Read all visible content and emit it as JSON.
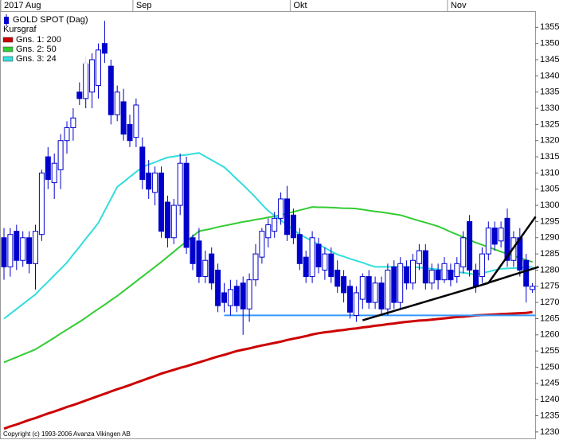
{
  "chart_data": {
    "type": "candlestick",
    "title": "GOLD SPOT (Dag)",
    "candle_label": "Kursgraf",
    "categories": [
      "2017 Aug",
      null,
      null,
      null,
      null,
      null,
      null,
      null,
      null,
      null,
      null,
      null,
      null,
      null,
      null,
      null,
      null,
      null,
      null,
      null,
      null,
      "Sep",
      null,
      null,
      null,
      null,
      null,
      null,
      null,
      null,
      null,
      null,
      null,
      null,
      null,
      null,
      null,
      null,
      null,
      null,
      null,
      null,
      null,
      null,
      null,
      null,
      "Okt",
      null,
      null,
      null,
      null,
      null,
      null,
      null,
      null,
      null,
      null,
      null,
      null,
      null,
      null,
      null,
      null,
      null,
      null,
      null,
      null,
      null,
      null,
      null,
      null,
      "Nov",
      null,
      null,
      null,
      null,
      null,
      null,
      null,
      null,
      null,
      null,
      null,
      null,
      null
    ],
    "open": [
      1290,
      1281,
      1292,
      1283,
      1290,
      1282,
      1291,
      1315,
      1307,
      1311,
      1320,
      1324,
      1335,
      1333,
      1335,
      1337,
      1350,
      1343,
      1328,
      1332,
      1325,
      1321,
      1318,
      1310,
      1304,
      1310,
      1301,
      1290,
      1300,
      1313,
      1290,
      1289,
      1278,
      1285,
      1280,
      1273,
      1269,
      1275,
      1276,
      1268,
      1277,
      1284,
      1290,
      1292,
      1296,
      1302,
      1297,
      1291,
      1284,
      1278,
      1288,
      1280,
      1285,
      1280,
      1278,
      1275,
      1266,
      1271,
      1278,
      1270,
      1276,
      1268,
      1281,
      1270,
      1281,
      1276,
      1282,
      1286,
      1276,
      1280,
      1277,
      1280,
      1278,
      1281,
      1295,
      1280,
      1278,
      1285,
      1293,
      1289,
      1296,
      1283,
      1290,
      1283,
      1274
    ],
    "high": [
      1293,
      1293,
      1294,
      1292,
      1292,
      1294,
      1311,
      1318,
      1316,
      1322,
      1326,
      1330,
      1338,
      1346,
      1347,
      1350,
      1357,
      1345,
      1337,
      1336,
      1328,
      1333,
      1321,
      1314,
      1312,
      1312,
      1303,
      1302,
      1316,
      1315,
      1291,
      1293,
      1286,
      1287,
      1282,
      1276,
      1277,
      1277,
      1278,
      1279,
      1288,
      1293,
      1296,
      1298,
      1304,
      1306,
      1299,
      1293,
      1286,
      1292,
      1290,
      1287,
      1287,
      1283,
      1280,
      1277,
      1275,
      1279,
      1280,
      1278,
      1278,
      1282,
      1283,
      1284,
      1283,
      1285,
      1288,
      1288,
      1282,
      1282,
      1284,
      1282,
      1284,
      1292,
      1297,
      1282,
      1287,
      1295,
      1295,
      1295,
      1299,
      1292,
      1293,
      1285,
      1276
    ],
    "low": [
      1277,
      1278,
      1280,
      1281,
      1279,
      1274,
      1289,
      1305,
      1302,
      1305,
      1316,
      1320,
      1331,
      1330,
      1330,
      1333,
      1344,
      1325,
      1326,
      1320,
      1318,
      1318,
      1305,
      1302,
      1300,
      1290,
      1287,
      1288,
      1297,
      1285,
      1280,
      1276,
      1276,
      1274,
      1267,
      1267,
      1266,
      1267,
      1260,
      1264,
      1275,
      1282,
      1287,
      1290,
      1294,
      1289,
      1288,
      1280,
      1276,
      1276,
      1279,
      1277,
      1276,
      1273,
      1270,
      1265,
      1264,
      1268,
      1268,
      1268,
      1266,
      1266,
      1268,
      1268,
      1274,
      1274,
      1280,
      1274,
      1274,
      1274,
      1276,
      1275,
      1276,
      1279,
      1278,
      1273,
      1276,
      1283,
      1286,
      1287,
      1281,
      1281,
      1278,
      1270,
      1273
    ],
    "close": [
      1281,
      1291,
      1283,
      1290,
      1282,
      1292,
      1310,
      1308,
      1313,
      1320,
      1324,
      1327,
      1333,
      1344,
      1345,
      1348,
      1347,
      1328,
      1335,
      1322,
      1320,
      1331,
      1308,
      1305,
      1310,
      1292,
      1290,
      1300,
      1313,
      1287,
      1282,
      1278,
      1283,
      1276,
      1269,
      1270,
      1274,
      1269,
      1268,
      1277,
      1285,
      1292,
      1294,
      1296,
      1302,
      1291,
      1290,
      1282,
      1278,
      1290,
      1281,
      1285,
      1278,
      1275,
      1273,
      1267,
      1273,
      1278,
      1270,
      1276,
      1268,
      1280,
      1270,
      1282,
      1276,
      1283,
      1286,
      1276,
      1280,
      1277,
      1282,
      1277,
      1282,
      1290,
      1280,
      1275,
      1285,
      1293,
      1288,
      1293,
      1283,
      1290,
      1280,
      1275,
      1275
    ],
    "up_color": "#ffffff",
    "down_color": "#0000cc",
    "series": [
      {
        "name": "Gns. 1: 200",
        "color": "#cc0000",
        "values": [
          1231,
          1231.7,
          1232.3,
          1233,
          1233.7,
          1234.3,
          1235,
          1235.7,
          1236.3,
          1237,
          1237.7,
          1238.3,
          1239,
          1239.7,
          1240.4,
          1241.1,
          1241.8,
          1242.5,
          1243.2,
          1243.8,
          1244.5,
          1245.2,
          1245.9,
          1246.6,
          1247.3,
          1248,
          1248.6,
          1249.2,
          1249.8,
          1250.3,
          1250.9,
          1251.5,
          1252.1,
          1252.7,
          1253.3,
          1253.8,
          1254.4,
          1255,
          1255.4,
          1255.8,
          1256.3,
          1256.7,
          1257.1,
          1257.5,
          1257.9,
          1258.4,
          1258.8,
          1259.2,
          1259.6,
          1260.1,
          1260.5,
          1260.8,
          1261,
          1261.3,
          1261.5,
          1261.8,
          1262,
          1262.3,
          1262.5,
          1262.8,
          1263,
          1263.3,
          1263.5,
          1263.8,
          1264,
          1264.2,
          1264.4,
          1264.5,
          1264.7,
          1264.9,
          1265.1,
          1265.3,
          1265.5,
          1265.6,
          1265.8,
          1266,
          1266.1,
          1266.2,
          1266.3,
          1266.4,
          1266.5,
          1266.6,
          1266.7,
          1266.8,
          1267
        ]
      },
      {
        "name": "Gns. 2: 50",
        "color": "#33cc33",
        "values": [
          1251.5,
          1252.3,
          1253.1,
          1253.9,
          1254.7,
          1255.5,
          1256.7,
          1257.9,
          1259.1,
          1260.4,
          1261.6,
          1262.8,
          1264,
          1265.3,
          1266.7,
          1268,
          1269.3,
          1270.7,
          1272,
          1273.5,
          1275,
          1276.5,
          1278,
          1279.5,
          1281,
          1282.5,
          1284.1,
          1285.7,
          1287.3,
          1288.8,
          1290.4,
          1292,
          1292.4,
          1292.8,
          1293.3,
          1293.7,
          1294.1,
          1294.5,
          1294.9,
          1295.2,
          1295.6,
          1295.9,
          1296.3,
          1296.6,
          1297,
          1297.5,
          1298,
          1298.5,
          1299,
          1299.5,
          1299.4,
          1299.4,
          1299.3,
          1299.2,
          1299.1,
          1299.1,
          1299,
          1298.7,
          1298.4,
          1298.1,
          1297.9,
          1297.6,
          1297.3,
          1297,
          1296.4,
          1295.8,
          1295.2,
          1294.7,
          1294.1,
          1293.5,
          1292.7,
          1291.8,
          1291,
          1290.2,
          1289.3,
          1288.5,
          1287.8,
          1287.1,
          1286.4,
          1285.7,
          1285,
          1284.4,
          1283.8,
          1283.1,
          1282.5
        ]
      },
      {
        "name": "Gns. 3: 24",
        "color": "#33dddd",
        "values": [
          1265,
          1266.5,
          1268,
          1269.5,
          1271,
          1272.5,
          1274.5,
          1276.4,
          1278.4,
          1280.3,
          1282.3,
          1284.8,
          1287.2,
          1289.7,
          1292.1,
          1294.6,
          1298.3,
          1302,
          1305.7,
          1307.2,
          1308.8,
          1310.3,
          1311.8,
          1312.6,
          1313.3,
          1314.1,
          1314.8,
          1315.1,
          1315.4,
          1315.6,
          1315.9,
          1316.2,
          1315.1,
          1314,
          1312.9,
          1311.8,
          1310,
          1308.1,
          1306.3,
          1304.4,
          1302.4,
          1300.3,
          1298.3,
          1296.8,
          1295.4,
          1293.9,
          1292.5,
          1291,
          1290,
          1288.9,
          1287.9,
          1286.9,
          1285.8,
          1284.8,
          1284.2,
          1283.5,
          1282.9,
          1282.3,
          1281.6,
          1281,
          1281,
          1281,
          1281,
          1281,
          1281,
          1281,
          1280.8,
          1280.6,
          1280.4,
          1280.2,
          1280,
          1279.7,
          1279.4,
          1279.2,
          1278.9,
          1278.6,
          1279.1,
          1279.5,
          1280,
          1280.4,
          1280.5,
          1280.6,
          1280.7,
          1280.9,
          1281
        ]
      }
    ],
    "hline": {
      "value": 1266,
      "x": [
        35,
        84.5
      ],
      "color": "#3399ff"
    },
    "trendlines": [
      {
        "x": [
          57,
          77
        ],
        "y": [
          1264.5,
          1276
        ],
        "color": "#000000"
      },
      {
        "x": [
          77,
          84.5
        ],
        "y": [
          1276,
          1296.5
        ],
        "color": "#000000"
      },
      {
        "x": [
          76,
          85
        ],
        "y": [
          1275.5,
          1281
        ],
        "color": "#000000"
      }
    ],
    "ylim": [
      1228,
      1360
    ],
    "yticks": [
      1230,
      1235,
      1240,
      1245,
      1250,
      1255,
      1260,
      1265,
      1270,
      1275,
      1280,
      1285,
      1290,
      1295,
      1300,
      1305,
      1310,
      1315,
      1320,
      1325,
      1330,
      1335,
      1340,
      1345,
      1350,
      1355
    ],
    "footer": "Copyright (c) 1993-2006 Avanza Vikingen AB"
  }
}
